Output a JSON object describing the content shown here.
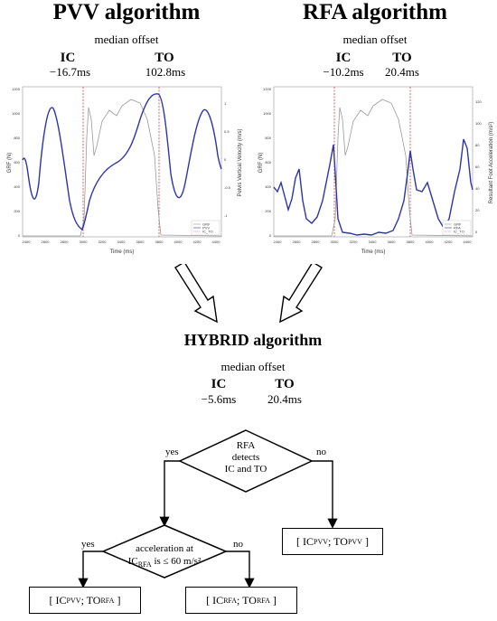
{
  "pvv": {
    "title": "PVV algorithm",
    "median_label": "median offset",
    "ic_label": "IC",
    "ic_value": "−16.7ms",
    "to_label": "TO",
    "to_value": "102.8ms",
    "chart": {
      "ylabel_left": "GRF (N)",
      "ylabel_right": "Pelvis Vertical Velocity (m/s)",
      "xlabel": "Time (ms)",
      "yticks_left": [
        "1200",
        "1000",
        "800",
        "600",
        "400",
        "200",
        "0"
      ],
      "yticks_right": [
        "1",
        "0.5",
        "0",
        "-0.5",
        "-1"
      ],
      "xticks": [
        "2400",
        "2600",
        "2800",
        "3000",
        "3200",
        "3400",
        "3600",
        "3800",
        "4000",
        "4200",
        "4400"
      ],
      "legend": [
        "GRF",
        "PVV",
        "IC_TO"
      ]
    }
  },
  "rfa": {
    "title": "RFA algorithm",
    "median_label": "median offset",
    "ic_label": "IC",
    "ic_value": "−10.2ms",
    "to_label": "TO",
    "to_value": "20.4ms",
    "chart": {
      "ylabel_left": "GRF (N)",
      "ylabel_right": "Resultant Foot Acceleration (m/s²)",
      "xlabel": "Time (ms)",
      "yticks_left": [
        "1200",
        "1000",
        "800",
        "600",
        "400",
        "200",
        "0"
      ],
      "yticks_right": [
        "120",
        "100",
        "80",
        "60",
        "40",
        "20",
        "0"
      ],
      "xticks": [
        "2400",
        "2600",
        "2800",
        "3000",
        "3200",
        "3400",
        "3600",
        "3800",
        "4000",
        "4200",
        "4400"
      ],
      "legend": [
        "GRF",
        "RFA",
        "IC_TO"
      ]
    }
  },
  "hybrid": {
    "title": "HYBRID algorithm",
    "median_label": "median offset",
    "ic_label": "IC",
    "ic_value": "−5.6ms",
    "to_label": "TO",
    "to_value": "20.4ms"
  },
  "flow": {
    "decision1": [
      "RFA",
      "detects",
      "IC and TO"
    ],
    "yes": "yes",
    "no": "no",
    "decision2_line1": "acceleration at",
    "decision2_line2_pre": "IC",
    "decision2_line2_sub": "RFA",
    "decision2_line2_post": " is ≤ 60 m/s²",
    "box_a": {
      "open": "[ IC",
      "sub1": "PVV",
      "mid": "; TO",
      "sub2": "RFA",
      "close": "]"
    },
    "box_b": {
      "open": "[ IC",
      "sub1": "RFA",
      "mid": "; TO",
      "sub2": "RFA",
      "close": "]"
    },
    "box_c": {
      "open": "[ IC",
      "sub1": "PVV",
      "mid": "; TO",
      "sub2": "PVV",
      "close": "]"
    }
  },
  "colors": {
    "grf": "#9a9a9a",
    "signal": "#2e35a8",
    "event_line": "#d24040"
  }
}
